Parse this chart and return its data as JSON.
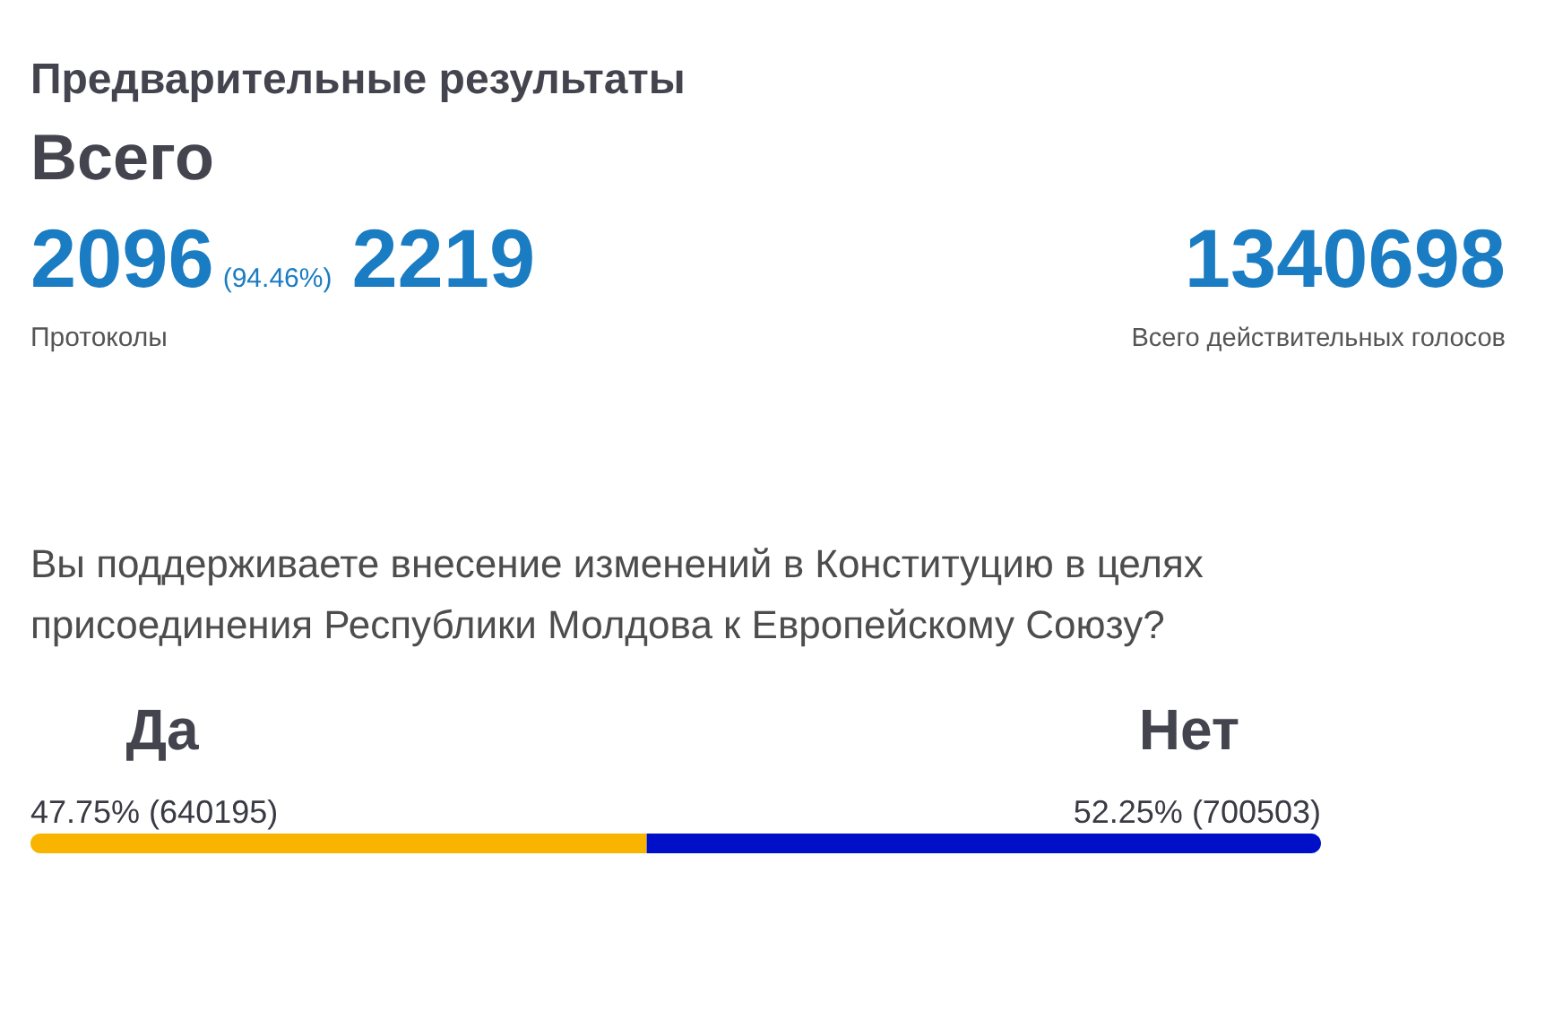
{
  "chart_data": {
    "type": "bar",
    "orientation": "horizontal",
    "stacked": true,
    "title": "Предварительные результаты",
    "subtitle": "Всего",
    "annotations": [
      "2096",
      "(94.46%)",
      "2219",
      "Протоколы",
      "1340698",
      "Всего действительных голосов",
      "Вы поддерживаете внесение изменений в Конституцию в целях присоединения Республики Молдова к Европейскому Союзу?"
    ],
    "categories": [
      null
    ],
    "series": [
      {
        "name": "Да",
        "color": "#f9b400",
        "values": [
          47.75
        ],
        "value_labels": [
          "47.75% (640195)"
        ]
      },
      {
        "name": "Нет",
        "color": "#0010c8",
        "values": [
          52.25
        ],
        "value_labels": [
          "52.25% (700503)"
        ]
      }
    ],
    "legend": false
  }
}
